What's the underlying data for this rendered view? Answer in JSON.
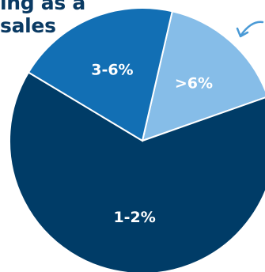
{
  "title": {
    "lines": [
      "ing as a",
      "sales"
    ]
  },
  "colors": {
    "title": "#0a3a63",
    "arrow": "#4a9ad6"
  },
  "chart_data": {
    "type": "pie",
    "title": "",
    "slices": [
      {
        "label": ">6%",
        "value": 16,
        "color": "#86bde8"
      },
      {
        "label": "1-2%",
        "value": 64,
        "color": "#003c67"
      },
      {
        "label": "3-6%",
        "value": 20,
        "color": "#126fb4"
      }
    ],
    "start_angle_deg": 13,
    "legend": "none"
  }
}
